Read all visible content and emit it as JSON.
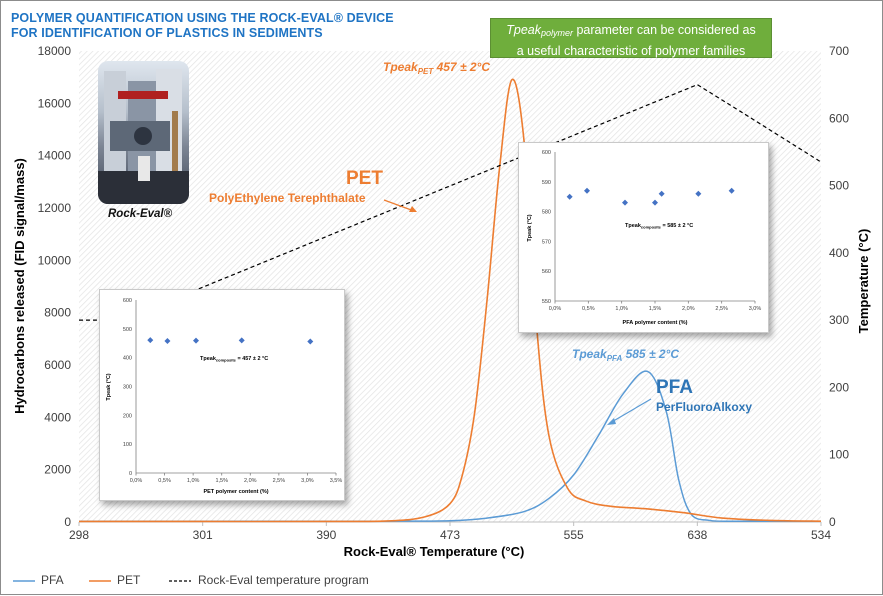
{
  "title": {
    "line1": "POLYMER QUANTIFICATION  USING THE ROCK-EVAL® DEVICE",
    "line2": "FOR IDENTIFICATION OF PLASTICS IN SEDIMENTS"
  },
  "note": {
    "param": "Tpeak",
    "param_sub": "polymer",
    "line1_rest": " parameter can be considered as",
    "line2": "a useful characteristic of polymer families",
    "bg_color": "#6fae3c"
  },
  "photo_caption": "Rock-Eval®",
  "labels": {
    "pet_peak_main": "Tpeak",
    "pet_peak_sub": "PET",
    "pet_peak_value": " 457 ± 2°C",
    "pfa_peak_main": "Tpeak",
    "pfa_peak_sub": "PFA",
    "pfa_peak_value": " 585 ± 2°C",
    "pet_name": "PET",
    "pet_full": "PolyEthylene Terephthalate",
    "pfa_name": "PFA",
    "pfa_full": "PerFluoroAlkoxy"
  },
  "legend": {
    "pfa": "PFA",
    "pet": "PET",
    "program": "Rock-Eval temperature program"
  },
  "colors": {
    "pfa": "#5b9bd5",
    "pet": "#ed7d31",
    "program": "#000000",
    "pet_label": "#ed7d31",
    "pfa_label": "#2e75b6",
    "pfa_peak_label": "#5b9bd5"
  },
  "chart_data": [
    {
      "type": "line",
      "xlabel": "Rock-Eval® Temperature (°C)",
      "ylabel": "Hydrocarbons released (FID signal/mass)",
      "y2label": "Temperature (°C)",
      "x_ticks": [
        "298",
        "301",
        "390",
        "473",
        "555",
        "638",
        "534"
      ],
      "ylim": [
        0,
        18000
      ],
      "y_ticks": [
        0,
        2000,
        4000,
        6000,
        8000,
        10000,
        12000,
        14000,
        16000,
        18000
      ],
      "y2lim": [
        0,
        700
      ],
      "y2_ticks": [
        0,
        100,
        200,
        300,
        400,
        500,
        600,
        700
      ],
      "x_domain": [
        0,
        6
      ],
      "grid": "hatched background",
      "legend_position": "bottom",
      "series": [
        {
          "name": "PFA",
          "axis": "left",
          "x": [
            0,
            1,
            2,
            2.5,
            3,
            3.3,
            3.6,
            3.8,
            4.0,
            4.2,
            4.4,
            4.6,
            4.75,
            4.85,
            4.95,
            5.1,
            5.3,
            5.6,
            6.0
          ],
          "y": [
            30,
            30,
            30,
            30,
            50,
            150,
            400,
            900,
            1800,
            3300,
            4900,
            5750,
            4200,
            1600,
            300,
            60,
            30,
            30,
            30
          ]
        },
        {
          "name": "PET",
          "axis": "left",
          "x": [
            0,
            1,
            2,
            2.5,
            2.8,
            3.0,
            3.1,
            3.2,
            3.3,
            3.4,
            3.5,
            3.6,
            3.7,
            3.8,
            3.95,
            4.1,
            4.3,
            4.6,
            4.9,
            5.2,
            5.6,
            6.0
          ],
          "y": [
            20,
            20,
            20,
            40,
            200,
            700,
            1800,
            4200,
            8500,
            13500,
            16900,
            14500,
            7500,
            3300,
            1300,
            800,
            600,
            500,
            350,
            150,
            60,
            30
          ]
        },
        {
          "name": "Rock-Eval temperature program",
          "axis": "right",
          "x": [
            0,
            0.35,
            5.0,
            5.35,
            6.0
          ],
          "y": [
            300,
            300,
            650,
            610,
            535
          ]
        }
      ]
    },
    {
      "type": "scatter",
      "xlabel": "PET polymer content (%)",
      "ylabel": "Tpeak (°C)",
      "annotation_main": "Tpeak",
      "annotation_sub": "composite",
      "annotation_value": " = 457 ± 2 °C",
      "x_ticks": [
        "0,0%",
        "0,5%",
        "1,0%",
        "1,5%",
        "2,0%",
        "2,5%",
        "3,0%",
        "3,5%"
      ],
      "xlim": [
        0,
        3.5
      ],
      "y_ticks": [
        "0",
        "100",
        "200",
        "300",
        "400",
        "500",
        "600"
      ],
      "ylim": [
        0,
        600
      ],
      "x": [
        0.25,
        0.55,
        1.05,
        1.85,
        3.05
      ],
      "y": [
        461,
        458,
        459,
        460,
        456
      ]
    },
    {
      "type": "scatter",
      "xlabel": "PFA polymer content (%)",
      "ylabel": "Tpeak (°C)",
      "annotation_main": "Tpeak",
      "annotation_sub": "composite",
      "annotation_value": " = 585 ± 2 °C",
      "x_ticks": [
        "0,0%",
        "0,5%",
        "1,0%",
        "1,5%",
        "2,0%",
        "2,5%",
        "3,0%"
      ],
      "xlim": [
        0,
        3
      ],
      "y_ticks": [
        "550",
        "560",
        "570",
        "580",
        "590",
        "600"
      ],
      "ylim": [
        550,
        600
      ],
      "x": [
        0.22,
        0.48,
        1.05,
        1.5,
        1.6,
        2.15,
        2.65
      ],
      "y": [
        585,
        587,
        583,
        583,
        586,
        586,
        587
      ]
    }
  ]
}
